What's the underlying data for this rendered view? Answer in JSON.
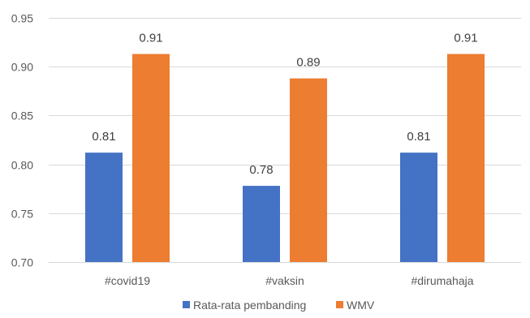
{
  "chart_data": {
    "type": "bar",
    "title": "",
    "xlabel": "",
    "ylabel": "",
    "categories": [
      "#covid19",
      "#vaksin",
      "#dirumahaja"
    ],
    "series": [
      {
        "name": "Rata-rata pembanding",
        "color": "#4472c4",
        "values": [
          0.812,
          0.778,
          0.812
        ],
        "labels": [
          "0.81",
          "0.78",
          "0.81"
        ]
      },
      {
        "name": "WMV",
        "color": "#ed7d31",
        "values": [
          0.913,
          0.888,
          0.913
        ],
        "labels": [
          "0.91",
          "0.89",
          "0.91"
        ]
      }
    ],
    "ylim": [
      0.7,
      0.95
    ],
    "yticks": [
      "0.70",
      "0.75",
      "0.80",
      "0.85",
      "0.90",
      "0.95"
    ],
    "grid": true,
    "legend_position": "bottom"
  }
}
